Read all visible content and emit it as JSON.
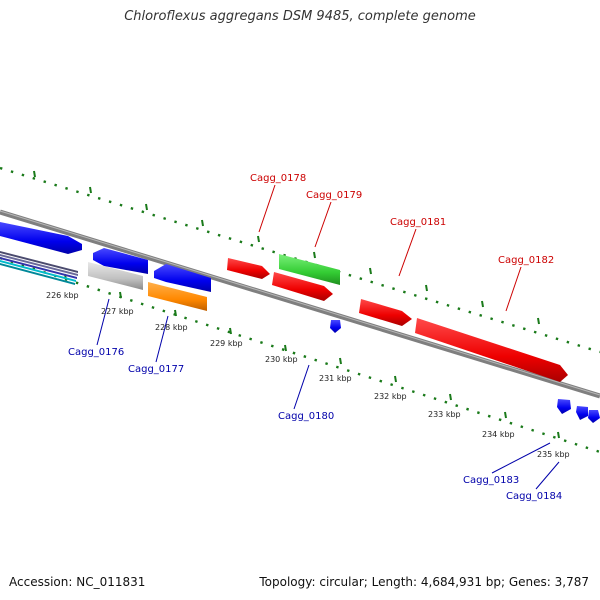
{
  "title": "Chloroflexus aggregans DSM 9485, complete genome",
  "accession": "Accession: NC_011831",
  "summary": "Topology: circular; Length: 4,684,931 bp; Genes: 3,787",
  "colors": {
    "forward_label": "#cc0000",
    "reverse_label": "#0000aa",
    "tick": "#1a7a1a",
    "backbone": "#7f7f7f",
    "red": "#ff0000",
    "blue": "#0000ff",
    "green": "#33cc33",
    "orange": "#ff8800",
    "gray": "#c0c0c0",
    "cyan": "#00bbcc"
  },
  "scale_labels": [
    "226 kbp",
    "227 kbp",
    "228 kbp",
    "229 kbp",
    "230 kbp",
    "231 kbp",
    "232 kbp",
    "233 kbp",
    "234 kbp",
    "235 kbp"
  ],
  "genes_top": [
    "Cagg_0178",
    "Cagg_0179",
    "Cagg_0181",
    "Cagg_0182"
  ],
  "genes_bottom": [
    "Cagg_0176",
    "Cagg_0177",
    "Cagg_0180",
    "Cagg_0183",
    "Cagg_0184"
  ]
}
